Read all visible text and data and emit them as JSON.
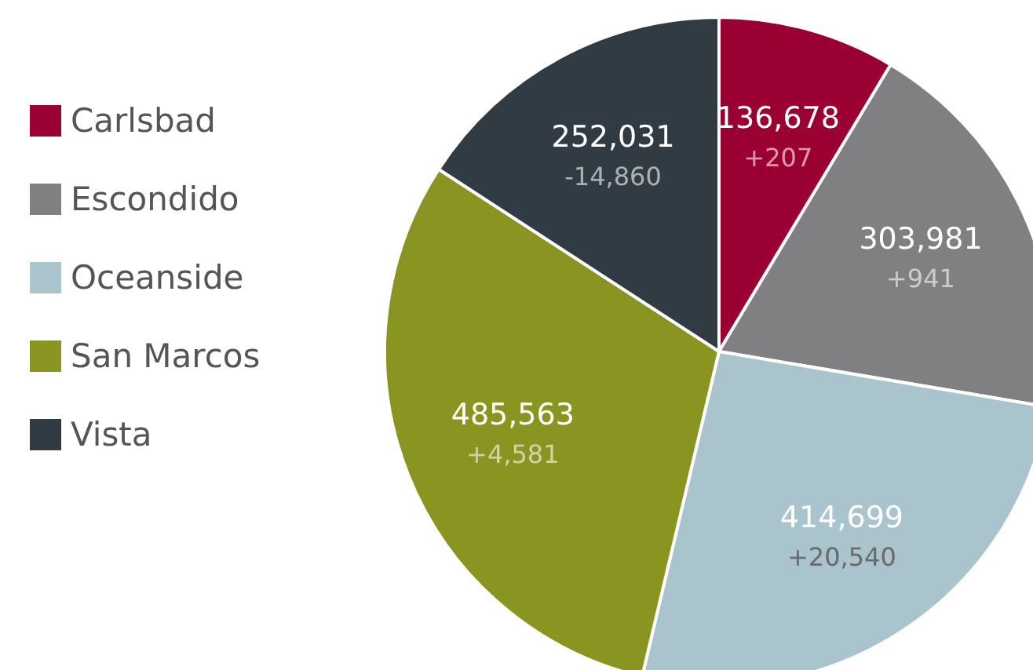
{
  "chart_data": {
    "type": "pie",
    "categories": [
      "Carlsbad",
      "Escondido",
      "Oceanside",
      "San Marcos",
      "Vista"
    ],
    "values": [
      136678,
      303981,
      414699,
      485563,
      252031
    ],
    "colors": [
      "#9b0033",
      "#808083",
      "#a9c4cc",
      "#8a9420",
      "#313b44"
    ],
    "value_labels": [
      "136,678",
      "303,981",
      "414,699",
      "485,563",
      "252,031"
    ],
    "legend": "left",
    "annotations": [
      {
        "text": "+207",
        "x": "Carlsbad"
      },
      {
        "text": "+941",
        "x": "Escondido"
      },
      {
        "text": "+20,540",
        "x": "Oceanside"
      },
      {
        "text": "+4,581",
        "x": "San Marcos"
      },
      {
        "text": "-14,860",
        "x": "Vista"
      }
    ]
  }
}
